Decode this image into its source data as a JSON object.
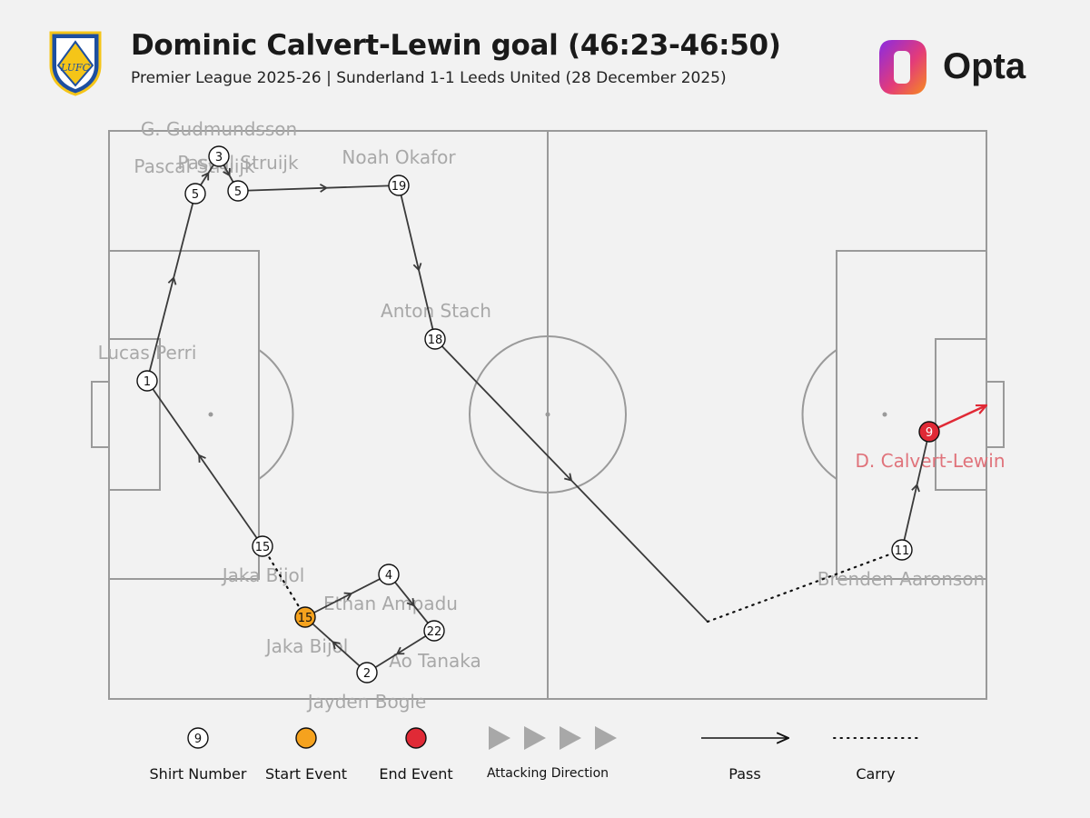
{
  "header": {
    "title": "Dominic Calvert-Lewin goal (46:23-46:50)",
    "subtitle": "Premier League 2025-26 | Sunderland 1-1 Leeds United (28 December 2025)",
    "brand": "Opta",
    "crest_text": "LUFC"
  },
  "colors": {
    "background": "#f2f2f2",
    "pitch_lines": "#9a9a9a",
    "player_label": "#a8a8a8",
    "pass_line": "#3a3a3a",
    "start_event": "#f5a21e",
    "end_event": "#e02a36",
    "end_label": "#e0737b",
    "brand_gradient": [
      "#8a2be2",
      "#e33b7a",
      "#f78c1e"
    ]
  },
  "players": [
    {
      "id": "p1",
      "number": "15",
      "name": "Jaka Bijol",
      "type": "start"
    },
    {
      "id": "p2",
      "number": "2",
      "name": "Jayden Bogle",
      "type": "normal"
    },
    {
      "id": "p3",
      "number": "22",
      "name": "Ao Tanaka",
      "type": "normal"
    },
    {
      "id": "p4",
      "number": "4",
      "name": "Ethan Ampadu",
      "type": "normal"
    },
    {
      "id": "p5",
      "number": "15",
      "name": "Jaka Bijol",
      "type": "normal"
    },
    {
      "id": "p6",
      "number": "1",
      "name": "Lucas Perri",
      "type": "normal"
    },
    {
      "id": "p7",
      "number": "5",
      "name": "Pascal Struijk",
      "type": "normal"
    },
    {
      "id": "p8",
      "number": "3",
      "name": "G. Gudmundsson",
      "type": "normal"
    },
    {
      "id": "p9",
      "number": "5",
      "name": "Pascal Struijk",
      "type": "normal"
    },
    {
      "id": "p10",
      "number": "19",
      "name": "Noah Okafor",
      "type": "normal"
    },
    {
      "id": "p11",
      "number": "18",
      "name": "Anton Stach",
      "type": "normal"
    },
    {
      "id": "p12",
      "number": "11",
      "name": "Brenden Aaronson",
      "type": "normal"
    },
    {
      "id": "p13",
      "number": "9",
      "name": "D. Calvert-Lewin",
      "type": "end"
    }
  ],
  "legend": {
    "shirt_number": {
      "label": "Shirt Number",
      "sample": "9"
    },
    "start_event": {
      "label": "Start Event"
    },
    "end_event": {
      "label": "End Event"
    },
    "attacking_direction": {
      "label": "Attacking Direction"
    },
    "pass": {
      "label": "Pass"
    },
    "carry": {
      "label": "Carry"
    }
  }
}
